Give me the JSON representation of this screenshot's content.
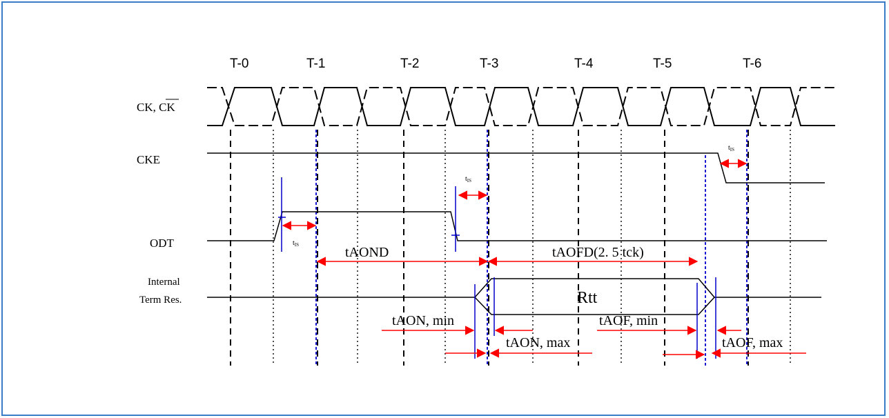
{
  "clock_ticks": [
    "T-0",
    "T-1",
    "T-2",
    "T-3",
    "T-4",
    "T-5",
    "T-6"
  ],
  "signals": {
    "ck": "CK, ",
    "ck_bar": "CK",
    "cke": "CKE",
    "odt": "ODT",
    "internal_line1": "Internal",
    "internal_line2": "Term Res."
  },
  "timings": {
    "tis_main": "t",
    "tis_sub": "IS",
    "taond": "tAOND",
    "taofd": "tAOFD(2. 5 tck)",
    "taon_min": "tAON, min",
    "taon_max": "tAON, max",
    "taof_min": "tAOF, min",
    "taof_max": "tAOF, max",
    "rtt": "Rtt"
  },
  "colors": {
    "arrow": "#ff0000",
    "marker": "#0000cc",
    "frame": "#3a7bc8"
  }
}
